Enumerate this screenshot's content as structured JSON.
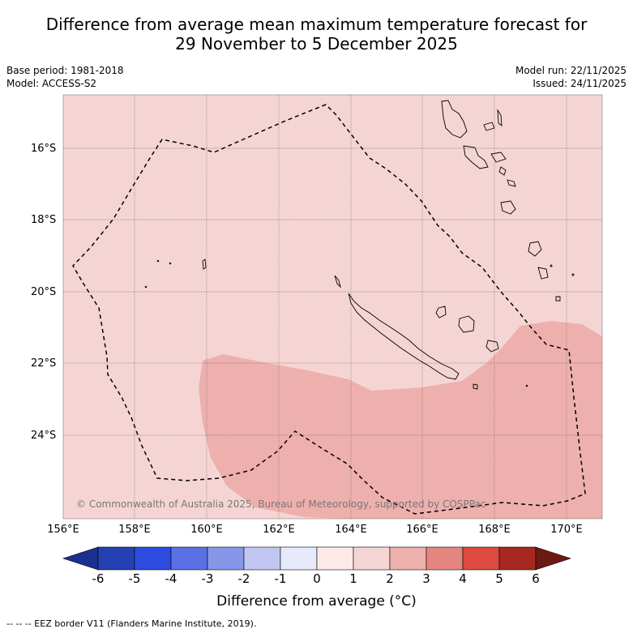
{
  "title": {
    "line1": "Difference from average mean maximum temperature forecast for",
    "line2": "29 November to 5 December 2025"
  },
  "meta_left": {
    "base_period": "Base period: 1981-2018",
    "model": "Model: ACCESS-S2"
  },
  "meta_right": {
    "model_run": "Model run: 22/11/2025",
    "issued": "Issued: 24/11/2025"
  },
  "map": {
    "copyright": "© Commonwealth of Australia 2025, Bureau of Meteorology, supported by COSPPac",
    "lat_labels": [
      "16°S",
      "18°S",
      "20°S",
      "22°S",
      "24°S"
    ],
    "lon_labels": [
      "156°E",
      "158°E",
      "160°E",
      "162°E",
      "164°E",
      "166°E",
      "168°E",
      "170°E"
    ],
    "base_anomaly_color": "#f5d5d4",
    "warm_anomaly_color": "#eeb0ad",
    "eez_line_color": "#000000"
  },
  "colorbar": {
    "ticks": [
      "-6",
      "-5",
      "-4",
      "-3",
      "-2",
      "-1",
      "0",
      "1",
      "2",
      "3",
      "4",
      "5",
      "6"
    ],
    "colors": [
      "#1c2e8f",
      "#2440b3",
      "#2f4ce0",
      "#5a70e4",
      "#8696e8",
      "#c1c7f2",
      "#e7eafb",
      "#fdeae8",
      "#f5d5d4",
      "#eeb0ad",
      "#e58781",
      "#dd4a3f",
      "#a72820",
      "#6b1a14"
    ],
    "title": "Difference from average (°C)"
  },
  "footnote": "-- -- -- EEZ border V11 (Flanders Marine Institute, 2019)."
}
